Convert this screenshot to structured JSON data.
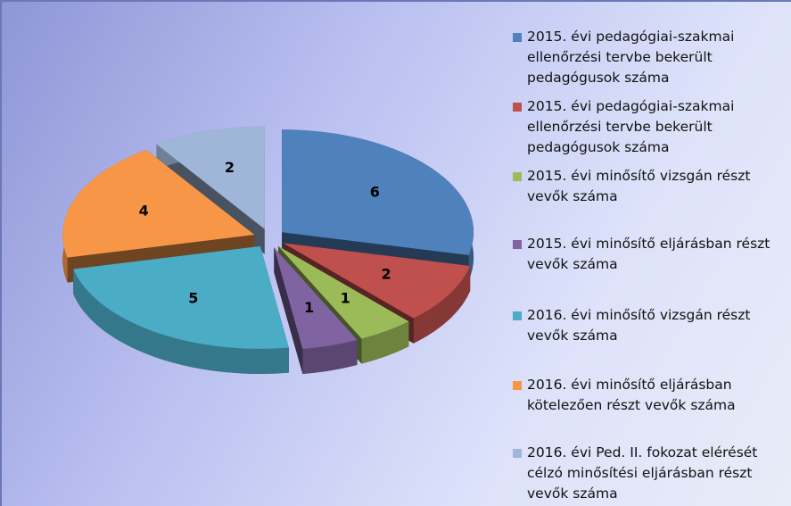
{
  "chart_data": {
    "type": "pie",
    "categories": [
      "2015. évi pedagógiai-szakmai ellenőrzési tervbe bekerült pedagógusok száma",
      "2015. évi pedagógiai-szakmai ellenőrzési tervbe bekerült pedagógusok száma",
      "2015. évi minősítő vizsgán részt vevők száma",
      "2015. évi minősítő eljárásban részt vevők száma",
      "2016. évi minősítő vizsgán részt vevők száma",
      "2016. évi minősítő eljárásban kötelezően részt vevők száma",
      "2016. évi Ped. II. fokozat elérését célzó minősítési eljárásban részt vevők száma"
    ],
    "values": [
      6,
      2,
      1,
      1,
      5,
      4,
      2
    ],
    "colors": [
      "#4f81bd",
      "#c0504d",
      "#9bbb59",
      "#8064a2",
      "#4bacc6",
      "#f79646",
      "#9fb6d8"
    ],
    "legend": "right"
  }
}
